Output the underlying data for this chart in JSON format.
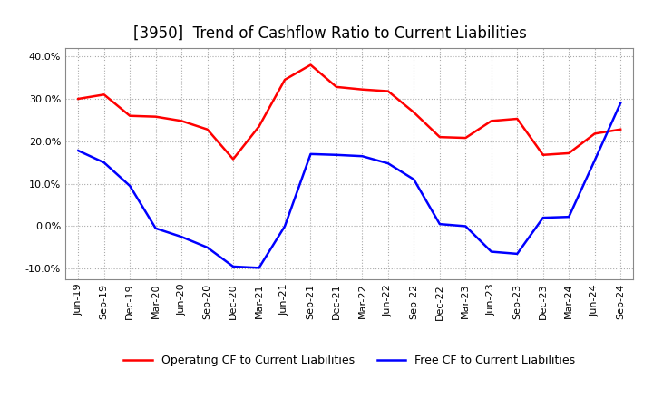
{
  "title": "[3950]  Trend of Cashflow Ratio to Current Liabilities",
  "x_labels": [
    "Jun-19",
    "Sep-19",
    "Dec-19",
    "Mar-20",
    "Jun-20",
    "Sep-20",
    "Dec-20",
    "Mar-21",
    "Jun-21",
    "Sep-21",
    "Dec-21",
    "Mar-22",
    "Jun-22",
    "Sep-22",
    "Dec-22",
    "Mar-23",
    "Jun-23",
    "Sep-23",
    "Dec-23",
    "Mar-24",
    "Jun-24",
    "Sep-24"
  ],
  "operating_cf": [
    0.3,
    0.31,
    0.26,
    0.258,
    0.248,
    0.228,
    0.158,
    0.235,
    0.345,
    0.38,
    0.328,
    0.322,
    0.318,
    0.268,
    0.21,
    0.208,
    0.248,
    0.253,
    0.168,
    0.172,
    0.218,
    0.228
  ],
  "free_cf": [
    0.178,
    0.15,
    0.095,
    -0.005,
    -0.025,
    -0.05,
    -0.095,
    -0.098,
    0.0,
    0.17,
    0.168,
    0.165,
    0.148,
    0.11,
    0.005,
    0.0,
    -0.06,
    -0.065,
    0.02,
    0.022,
    0.155,
    0.29
  ],
  "ylim": [
    -0.125,
    0.42
  ],
  "yticks": [
    -0.1,
    0.0,
    0.1,
    0.2,
    0.3,
    0.4
  ],
  "operating_color": "#FF0000",
  "free_color": "#0000FF",
  "grid_color": "#AAAAAA",
  "background_color": "#FFFFFF",
  "legend_operating": "Operating CF to Current Liabilities",
  "legend_free": "Free CF to Current Liabilities",
  "title_fontsize": 12,
  "tick_fontsize": 8,
  "legend_fontsize": 9
}
